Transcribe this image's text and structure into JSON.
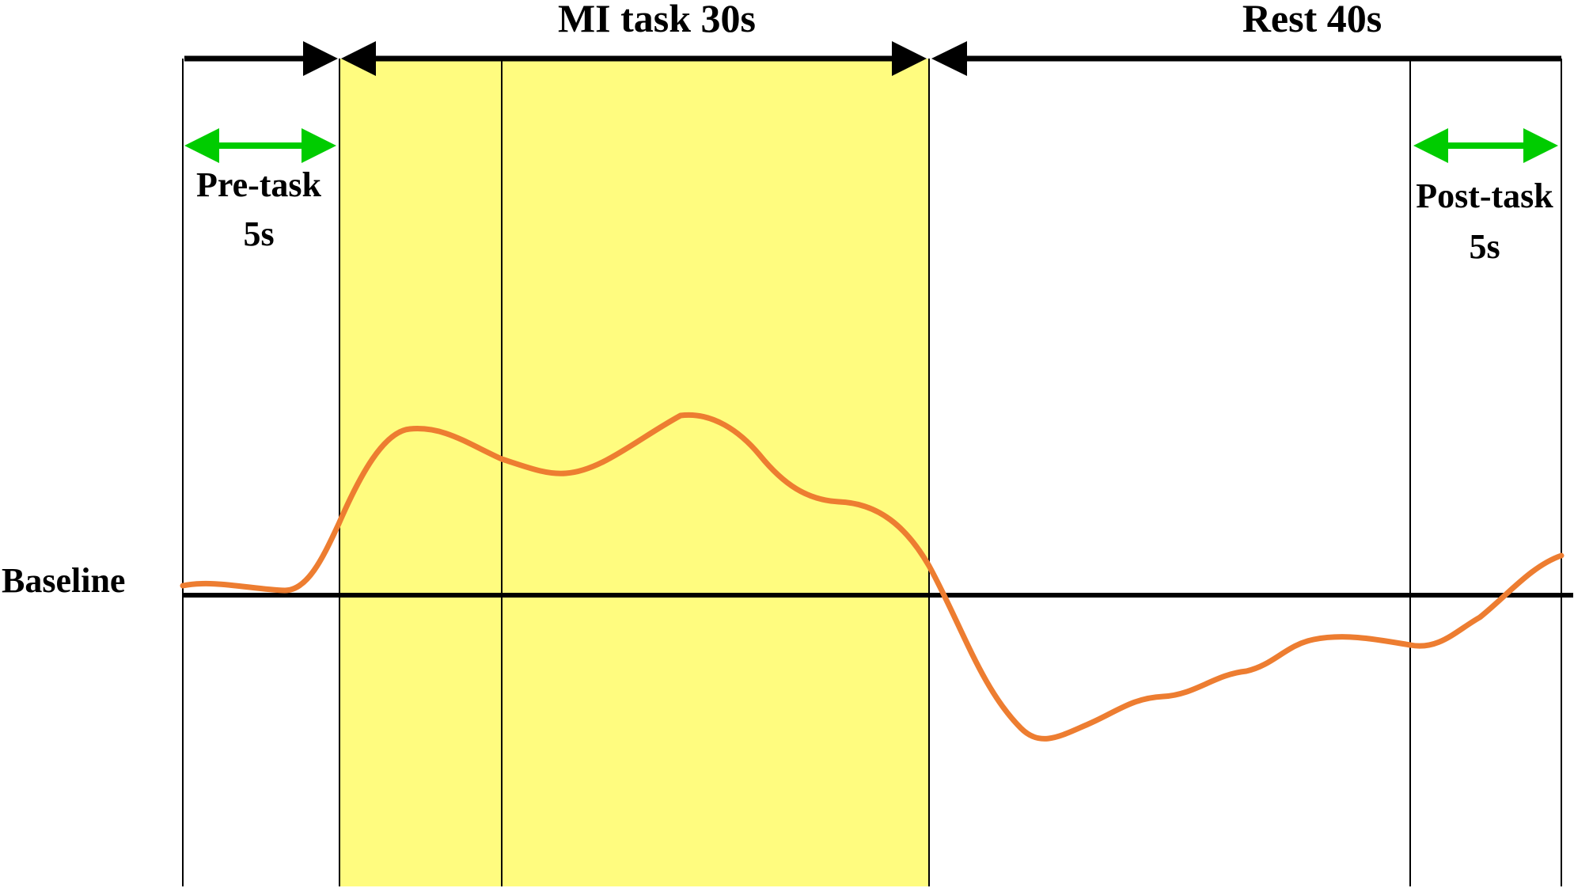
{
  "labels": {
    "mi_task": "MI task  30s",
    "rest": "Rest 40s",
    "pre_task_line1": "Pre-task",
    "pre_task_line2": "5s",
    "post_task_line1": "Post-task",
    "post_task_line2": "5s",
    "baseline": "Baseline"
  },
  "colors": {
    "task_highlight": "#FFFC7F",
    "signal_curve": "#ED7D31",
    "window_arrow": "#00CC00",
    "phase_arrow": "#000000",
    "line": "#000000"
  },
  "timing_seconds": {
    "pre_task": 5,
    "mi_task": 30,
    "rest": 40,
    "post_task": 5
  }
}
